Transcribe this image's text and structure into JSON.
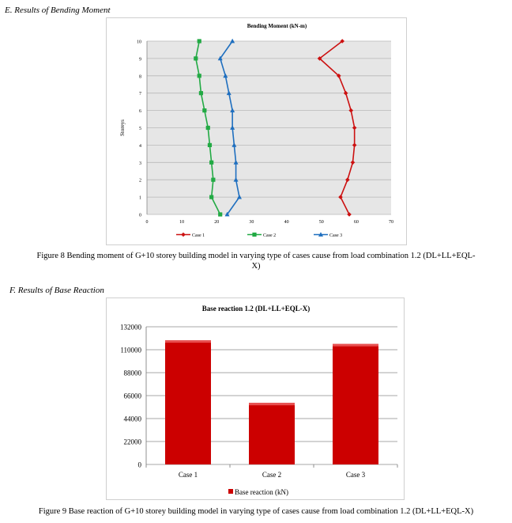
{
  "section_e": {
    "heading": "E.   Results of Bending Moment"
  },
  "section_f": {
    "heading": "F.   Results of Base Reaction"
  },
  "figure8": {
    "caption_line1": "Figure 8 Bending moment of G+10 storey building model in varying type of cases cause from load combination 1.2 (DL+LL+EQL-",
    "caption_line2": "X)"
  },
  "figure9": {
    "caption": "Figure 9 Base reaction of G+10 storey building model in varying type of cases cause from load combination 1.2 (DL+LL+EQL-X)"
  },
  "colors": {
    "case1": "#cc1111",
    "case2": "#22aa44",
    "case3": "#1f6fbf",
    "bar": "#cc0000",
    "plot_bg": "#e6e6e6"
  },
  "chart_data": [
    {
      "type": "line",
      "title": "Bending Moment (kN-m)",
      "xlabel": "",
      "ylabel": "Storeys",
      "xlim": [
        0,
        70
      ],
      "ylim": [
        0,
        10
      ],
      "x_ticks": [
        "0",
        "10",
        "20",
        "30",
        "40",
        "50",
        "60",
        "70"
      ],
      "y_ticks": [
        "0",
        "1",
        "2",
        "3",
        "4",
        "5",
        "6",
        "7",
        "8",
        "9",
        "10"
      ],
      "grid": true,
      "legend": "bottom",
      "storeys": [
        0,
        1,
        2,
        3,
        4,
        5,
        6,
        7,
        8,
        9,
        10
      ],
      "series": [
        {
          "name": "Case 1",
          "values": [
            58,
            55.5,
            57.5,
            59,
            59.5,
            59.5,
            58.5,
            57,
            55,
            49.5,
            56
          ]
        },
        {
          "name": "Case 2",
          "values": [
            21,
            18.5,
            19,
            18.5,
            18,
            17.5,
            16.5,
            15.5,
            15,
            14,
            15
          ]
        },
        {
          "name": "Case 3",
          "values": [
            23,
            26.5,
            25.5,
            25.5,
            25,
            24.5,
            24.5,
            23.5,
            22.5,
            21,
            24.5
          ]
        }
      ]
    },
    {
      "type": "bar",
      "title": "Base reaction 1.2 (DL+LL+EQL-X)",
      "categories": [
        "Case 1",
        "Case 2",
        "Case 3"
      ],
      "series": [
        {
          "name": "Base reaction (kN)",
          "values": [
            119000,
            59000,
            115500
          ]
        }
      ],
      "ylim": [
        0,
        132000
      ],
      "y_ticks": [
        "0",
        "22000",
        "44000",
        "66000",
        "88000",
        "110000",
        "132000"
      ],
      "grid": true,
      "legend": "bottom"
    }
  ]
}
